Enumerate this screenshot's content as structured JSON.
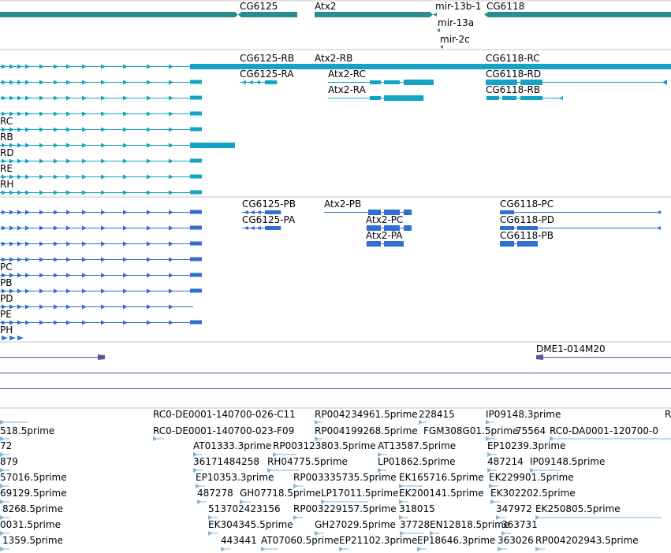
{
  "colors": {
    "gene": "#2e8b8b",
    "transcript": "#13a3c4",
    "protein": "#2f6fd1",
    "clone": "#6a4c93",
    "est": "#7fb6dc",
    "divider": "#c8c8c8"
  },
  "genes": {
    "labels": [
      "CG6125",
      "Atx2",
      "mir-13b-1",
      "CG6118",
      "mir-13a",
      "mir-2c"
    ]
  },
  "transcripts": {
    "labels": [
      "CG6125-RB",
      "CG6125-RA",
      "Atx2-RB",
      "Atx2-RC",
      "Atx2-RA",
      "CG6118-RC",
      "CG6118-RD",
      "CG6118-RB",
      "RC",
      "RB",
      "RD",
      "RE",
      "RH"
    ]
  },
  "proteins": {
    "labels": [
      "CG6125-PB",
      "CG6125-PA",
      "Atx2-PB",
      "Atx2-PC",
      "Atx2-PA",
      "CG6118-PC",
      "CG6118-PD",
      "CG6118-PB",
      "PC",
      "PB",
      "PD",
      "PE",
      "PH"
    ]
  },
  "clones": {
    "labels": [
      "DME1-014M20"
    ]
  },
  "ests": {
    "labels": [
      "518.5prime",
      "RC0-DE0001-140700-026-C11",
      "RP004234961.5prime",
      "228415",
      "IP09148.3prime",
      "R",
      "RC0-DE0001-140700-023-F09",
      "RP004199268.5prime",
      "FGM308G01.5prime",
      "75564",
      "RC0-DA0001-120700-0",
      "72",
      "AT01333.3prime",
      "RP003123803.5prime",
      "AT13587.5prime",
      "EP10239.3prime",
      "879",
      "36171484258",
      "RH04775.5prime",
      "LP01862.5prime",
      "487214",
      "IP09148.5prime",
      "57016.5prime",
      "EP10353.3prime",
      "RP003335735.5prime",
      "EK165716.5prime",
      "EK229901.5prime",
      "69129.5prime",
      "487278",
      "GH07718.5prime",
      "LP17011.5prime",
      "EK200141.5prime",
      "EK302202.5prime",
      "8268.5prime",
      "513702423156",
      "RP003229157.5prime",
      "318015",
      "347972",
      "EK250805.5prime",
      "0031.5prime",
      "EK304345.5prime",
      "GH27029.5prime",
      "37728",
      "EN12818.5prime",
      "363731",
      "1359.5prime",
      "443441",
      "AT07060.5prime",
      "EP21102.3prime",
      "EP18646.3prime",
      "363026",
      "RP004202943.5prime"
    ]
  }
}
